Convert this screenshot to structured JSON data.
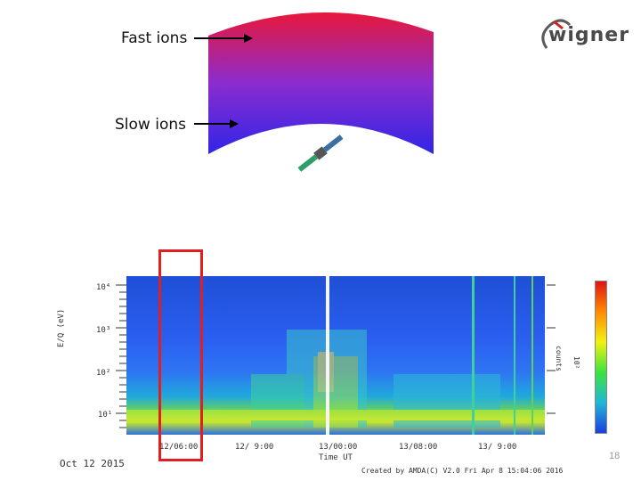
{
  "diagram": {
    "fast_label": "Fast ions",
    "slow_label": "Slow ions"
  },
  "logo": {
    "text": "wigner"
  },
  "spectrogram": {
    "y_ticks": [
      "10⁴",
      "10³",
      "10²",
      "10¹"
    ],
    "y_axis_label": "E/Q (eV)",
    "x_ticks": [
      "12/06:00",
      "12/ 9:00",
      "13/00:00",
      "13/08:00",
      "13/ 9:00"
    ],
    "x_axis_label": "Time UT",
    "date_label": "Oct 12 2015",
    "created_label": "Created by AMDA(C) V2.0 Fri Apr  8 15:04:06 2016",
    "colorbar_label": "counts",
    "colorbar_scale": "10²",
    "highlight_color": "#e02020"
  },
  "slide_number": "18"
}
